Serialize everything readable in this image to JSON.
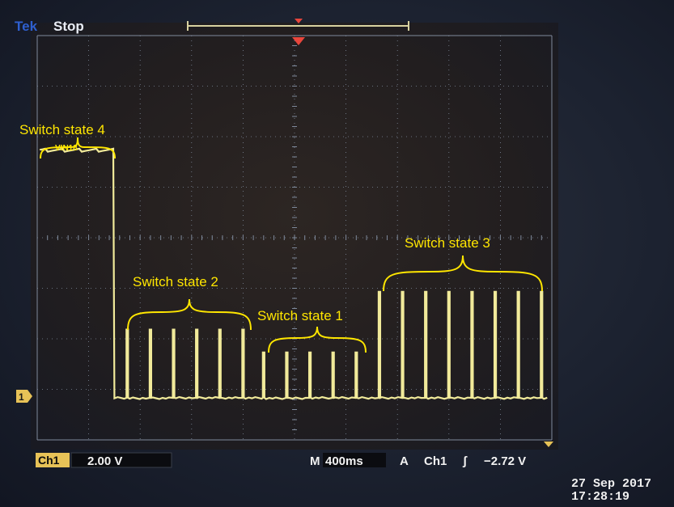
{
  "header": {
    "brand": "Tek",
    "status": "Stop"
  },
  "channel_marker": "1",
  "annotations": {
    "state4": "Switch state 4",
    "vin": "VIN18",
    "state2": "Switch state 2",
    "state1": "Switch state 1",
    "state3": "Switch state 3"
  },
  "readout": {
    "ch_label": "Ch1",
    "volts_div": "2.00 V",
    "timebase_prefix": "M",
    "timebase": "400ms",
    "trigger_mode": "A",
    "trigger_source": "Ch1",
    "trigger_slope": "ʃ",
    "trigger_level": "−2.72 V"
  },
  "timestamp": {
    "date": "27 Sep  2017",
    "time": "17:28:19"
  },
  "colors": {
    "trace": "#f1ea9a",
    "annotation": "#ffe600",
    "screen": "#25201f",
    "grid": "#7f8a9c",
    "marker": "#e7c257",
    "trigger": "#e9463c"
  },
  "chart_data": {
    "type": "line",
    "title": "",
    "xlabel": "",
    "ylabel": "",
    "x_unit_per_div": "400ms",
    "y_unit_per_div": "2.00 V",
    "x_divisions": 10,
    "y_divisions": 8,
    "baseline_div": 0,
    "series": [
      {
        "values_desc": "Ch1 level in divisions above channel marker",
        "high_level_div": 4.9,
        "high_until_div": 1.5,
        "pulses": [
          {
            "x_div": 1.75,
            "height_div": 1.35
          },
          {
            "x_div": 2.2,
            "height_div": 1.35
          },
          {
            "x_div": 2.65,
            "height_div": 1.35
          },
          {
            "x_div": 3.1,
            "height_div": 1.35
          },
          {
            "x_div": 3.55,
            "height_div": 1.35
          },
          {
            "x_div": 4.0,
            "height_div": 1.35
          },
          {
            "x_div": 4.4,
            "height_div": 0.9
          },
          {
            "x_div": 4.85,
            "height_div": 0.9
          },
          {
            "x_div": 5.3,
            "height_div": 0.9
          },
          {
            "x_div": 5.75,
            "height_div": 0.9
          },
          {
            "x_div": 6.2,
            "height_div": 0.9
          },
          {
            "x_div": 6.65,
            "height_div": 2.1
          },
          {
            "x_div": 7.1,
            "height_div": 2.1
          },
          {
            "x_div": 7.55,
            "height_div": 2.1
          },
          {
            "x_div": 8.0,
            "height_div": 2.1
          },
          {
            "x_div": 8.45,
            "height_div": 2.1
          },
          {
            "x_div": 8.9,
            "height_div": 2.1
          },
          {
            "x_div": 9.35,
            "height_div": 2.1
          },
          {
            "x_div": 9.8,
            "height_div": 2.1
          }
        ]
      }
    ]
  }
}
